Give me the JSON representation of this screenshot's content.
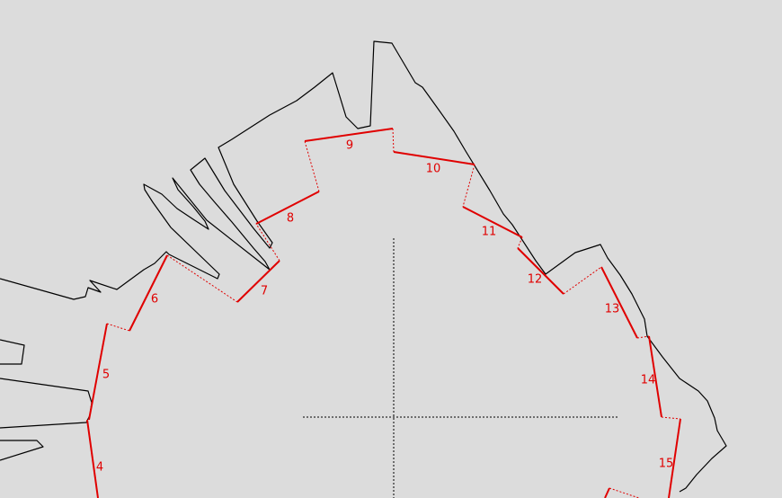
{
  "colors": {
    "background": "#dcdcdc",
    "outline": "#000000",
    "segment": "#e00000",
    "crosshair": "#000000"
  },
  "segments": [
    {
      "label": "4"
    },
    {
      "label": "5"
    },
    {
      "label": "6"
    },
    {
      "label": "7"
    },
    {
      "label": "8"
    },
    {
      "label": "9"
    },
    {
      "label": "10"
    },
    {
      "label": "11"
    },
    {
      "label": "12"
    },
    {
      "label": "13"
    },
    {
      "label": "14"
    },
    {
      "label": "15"
    }
  ]
}
